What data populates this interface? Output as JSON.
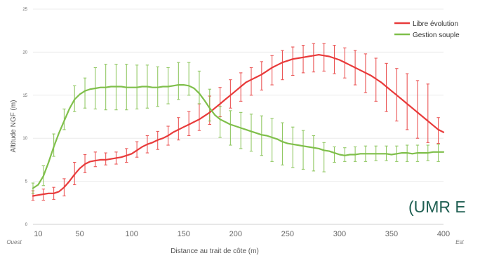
{
  "chart_data": {
    "type": "line",
    "xlabel": "Distance au trait de côte (m)",
    "ylabel": "Altitude NGF (m)",
    "x_axis_left_label": "Ouest",
    "x_axis_right_label": "Est",
    "xlim": [
      5,
      400
    ],
    "ylim": [
      0,
      25
    ],
    "x_ticks": [
      10,
      50,
      100,
      150,
      200,
      250,
      300,
      350,
      400
    ],
    "y_ticks": [
      0,
      5,
      10,
      15,
      20,
      25
    ],
    "grid": "horizontal",
    "legend_position": "top-right",
    "series": [
      {
        "name": "Libre évolution",
        "color": "#e83a3a",
        "x": [
          5,
          10,
          15,
          20,
          25,
          30,
          35,
          40,
          45,
          50,
          55,
          60,
          65,
          70,
          75,
          80,
          85,
          90,
          95,
          100,
          105,
          110,
          115,
          120,
          125,
          130,
          135,
          140,
          145,
          150,
          155,
          160,
          165,
          170,
          175,
          180,
          185,
          190,
          195,
          200,
          205,
          210,
          215,
          220,
          225,
          230,
          235,
          240,
          245,
          250,
          255,
          260,
          265,
          270,
          275,
          280,
          285,
          290,
          295,
          300,
          305,
          310,
          315,
          320,
          325,
          330,
          335,
          340,
          345,
          350,
          355,
          360,
          365,
          370,
          375,
          380,
          385,
          390,
          395,
          400
        ],
        "y": [
          3.3,
          3.4,
          3.5,
          3.6,
          3.6,
          3.8,
          4.3,
          5.0,
          5.8,
          6.5,
          7.0,
          7.3,
          7.4,
          7.5,
          7.5,
          7.6,
          7.7,
          7.8,
          8.0,
          8.2,
          8.6,
          9.0,
          9.3,
          9.5,
          9.8,
          10.0,
          10.3,
          10.7,
          11.0,
          11.3,
          11.6,
          11.9,
          12.2,
          12.6,
          13.0,
          13.5,
          14.0,
          14.5,
          15.0,
          15.5,
          16.0,
          16.5,
          16.8,
          17.1,
          17.4,
          17.8,
          18.2,
          18.5,
          18.8,
          19.0,
          19.2,
          19.3,
          19.4,
          19.5,
          19.6,
          19.7,
          19.6,
          19.5,
          19.3,
          19.1,
          18.8,
          18.5,
          18.2,
          17.9,
          17.6,
          17.3,
          16.9,
          16.5,
          16.0,
          15.5,
          15.0,
          14.5,
          14.0,
          13.5,
          13.0,
          12.5,
          12.0,
          11.5,
          11.0,
          10.7
        ],
        "error_x": [
          5,
          15,
          25,
          35,
          45,
          55,
          65,
          75,
          85,
          95,
          105,
          115,
          125,
          135,
          145,
          155,
          165,
          175,
          185,
          195,
          205,
          215,
          225,
          235,
          245,
          255,
          265,
          275,
          285,
          295,
          305,
          315,
          325,
          335,
          345,
          355,
          365,
          375,
          385,
          395
        ],
        "error_lower": [
          2.8,
          2.8,
          2.9,
          3.3,
          4.6,
          6.0,
          6.7,
          6.9,
          7.0,
          7.2,
          7.8,
          8.3,
          8.7,
          9.2,
          9.8,
          10.3,
          10.9,
          11.6,
          12.5,
          13.5,
          14.3,
          15.0,
          15.6,
          16.2,
          16.8,
          17.3,
          17.6,
          17.7,
          17.8,
          17.5,
          17.0,
          16.2,
          15.3,
          14.3,
          13.1,
          12.0,
          11.0,
          10.0,
          9.5,
          9.4
        ],
        "error_upper": [
          3.9,
          4.1,
          4.3,
          5.3,
          7.2,
          8.1,
          8.4,
          8.3,
          8.4,
          8.8,
          9.6,
          10.3,
          10.8,
          11.4,
          12.4,
          13.1,
          14.0,
          14.9,
          15.9,
          16.8,
          17.6,
          18.2,
          18.9,
          19.6,
          20.2,
          20.6,
          20.8,
          21.0,
          21.0,
          20.8,
          20.5,
          20.2,
          19.8,
          19.3,
          18.7,
          18.1,
          17.5,
          16.7,
          16.3,
          12.4
        ]
      },
      {
        "name": "Gestion souple",
        "color": "#7fbf4a",
        "x": [
          5,
          10,
          15,
          20,
          25,
          30,
          35,
          40,
          45,
          50,
          55,
          60,
          65,
          70,
          75,
          80,
          85,
          90,
          95,
          100,
          105,
          110,
          115,
          120,
          125,
          130,
          135,
          140,
          145,
          150,
          155,
          160,
          165,
          170,
          175,
          180,
          185,
          190,
          195,
          200,
          205,
          210,
          215,
          220,
          225,
          230,
          235,
          240,
          245,
          250,
          255,
          260,
          265,
          270,
          275,
          280,
          285,
          290,
          295,
          300,
          305,
          310,
          315,
          320,
          325,
          330,
          335,
          340,
          345,
          350,
          355,
          360,
          365,
          370,
          375,
          380,
          385,
          390,
          395,
          400
        ],
        "y": [
          4.2,
          4.6,
          5.6,
          7.2,
          9.0,
          10.6,
          12.0,
          13.4,
          14.5,
          15.1,
          15.5,
          15.7,
          15.8,
          15.9,
          15.9,
          16.0,
          16.0,
          16.0,
          15.9,
          15.9,
          15.9,
          16.0,
          16.0,
          15.9,
          15.9,
          16.0,
          16.0,
          16.1,
          16.2,
          16.2,
          16.1,
          15.8,
          15.2,
          14.4,
          13.5,
          12.7,
          12.2,
          11.9,
          11.6,
          11.4,
          11.2,
          11.0,
          10.8,
          10.6,
          10.4,
          10.3,
          10.1,
          9.9,
          9.6,
          9.4,
          9.3,
          9.2,
          9.1,
          9.0,
          8.9,
          8.8,
          8.6,
          8.5,
          8.3,
          8.1,
          8.0,
          8.1,
          8.1,
          8.2,
          8.2,
          8.2,
          8.2,
          8.2,
          8.2,
          8.1,
          8.2,
          8.3,
          8.3,
          8.2,
          8.3,
          8.3,
          8.3,
          8.4,
          8.4,
          8.4
        ],
        "error_x": [
          5,
          15,
          25,
          35,
          45,
          55,
          65,
          75,
          85,
          95,
          105,
          115,
          125,
          135,
          145,
          155,
          165,
          175,
          185,
          195,
          205,
          215,
          225,
          235,
          245,
          255,
          265,
          275,
          285,
          295,
          305,
          315,
          325,
          335,
          345,
          355,
          365,
          375,
          385,
          395
        ],
        "error_lower": [
          3.6,
          4.5,
          7.9,
          11.0,
          13.1,
          13.5,
          13.4,
          13.3,
          13.3,
          13.3,
          13.4,
          13.5,
          13.7,
          14.0,
          14.5,
          15.0,
          14.0,
          12.0,
          10.1,
          9.2,
          8.8,
          8.5,
          8.0,
          7.3,
          6.9,
          6.6,
          6.4,
          6.2,
          6.1,
          7.2,
          7.3,
          7.3,
          7.3,
          7.4,
          7.4,
          7.3,
          7.3,
          7.3,
          7.4,
          7.3
        ],
        "error_upper": [
          4.8,
          6.8,
          10.5,
          13.4,
          16.1,
          17.0,
          18.2,
          18.6,
          18.6,
          18.6,
          18.5,
          18.5,
          18.3,
          18.2,
          18.8,
          18.8,
          17.8,
          15.7,
          13.7,
          13.2,
          13.0,
          12.8,
          12.6,
          12.3,
          11.8,
          11.3,
          10.9,
          10.3,
          9.5,
          9.0,
          8.9,
          9.0,
          9.1,
          9.1,
          9.1,
          9.1,
          9.2,
          9.2,
          9.2,
          9.3
        ]
      }
    ]
  },
  "overlay_text": "(UMR E"
}
